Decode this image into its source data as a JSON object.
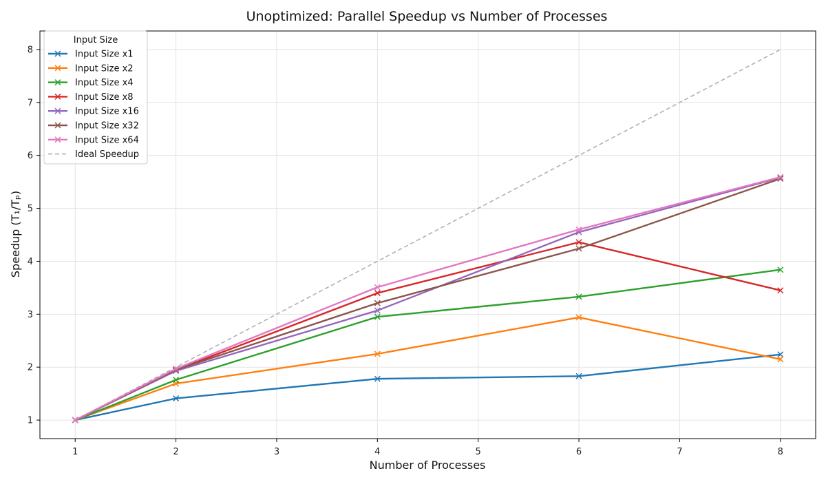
{
  "chart_data": {
    "type": "line",
    "title": "Unoptimized: Parallel Speedup vs Number of Processes",
    "xlabel": "Number of Processes",
    "ylabel": "Speedup (T₁/Tₚ)",
    "xlim": [
      0.65,
      8.35
    ],
    "ylim": [
      0.65,
      8.35
    ],
    "xticks": [
      1,
      2,
      3,
      4,
      5,
      6,
      7,
      8
    ],
    "yticks": [
      1,
      2,
      3,
      4,
      5,
      6,
      7,
      8
    ],
    "grid": true,
    "legend": {
      "title": "Input Size",
      "position": "top-left"
    },
    "x": [
      1,
      2,
      4,
      6,
      8
    ],
    "series": [
      {
        "name": "Input Size x1",
        "color": "#1f77b4",
        "marker": "x",
        "values": [
          1.0,
          1.41,
          1.78,
          1.83,
          2.24
        ]
      },
      {
        "name": "Input Size x2",
        "color": "#ff7f0e",
        "marker": "x",
        "values": [
          1.0,
          1.69,
          2.25,
          2.94,
          2.15
        ]
      },
      {
        "name": "Input Size x4",
        "color": "#2ca02c",
        "marker": "x",
        "values": [
          1.0,
          1.76,
          2.95,
          3.33,
          3.84
        ]
      },
      {
        "name": "Input Size x8",
        "color": "#d62728",
        "marker": "x",
        "values": [
          1.0,
          1.95,
          3.4,
          4.36,
          3.45
        ]
      },
      {
        "name": "Input Size x16",
        "color": "#9467bd",
        "marker": "x",
        "values": [
          1.0,
          1.93,
          3.07,
          4.55,
          5.58
        ]
      },
      {
        "name": "Input Size x32",
        "color": "#8c564b",
        "marker": "x",
        "values": [
          1.0,
          1.95,
          3.21,
          4.24,
          5.56
        ]
      },
      {
        "name": "Input Size x64",
        "color": "#e377c2",
        "marker": "x",
        "values": [
          1.0,
          1.97,
          3.51,
          4.6,
          5.59
        ]
      }
    ],
    "ideal": {
      "name": "Ideal Speedup",
      "color": "#b0b0b0",
      "style": "dashed",
      "x": [
        1,
        8
      ],
      "values": [
        1,
        8
      ]
    }
  }
}
